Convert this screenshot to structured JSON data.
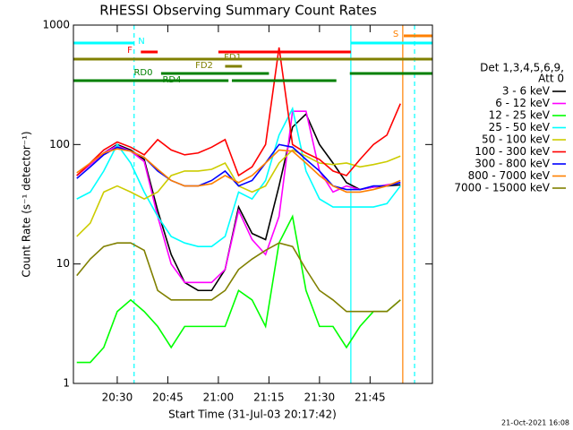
{
  "chart_data": {
    "type": "line",
    "title": "RHESSI Observing Summary Count Rates",
    "x_label": "Start Time (31-Jul-03 20:17:42)",
    "y_label": "Count Rate (s⁻¹ detector⁻¹)",
    "footer": "21-Oct-2021 16:08",
    "legend_title": [
      "Det 1,3,4,5,6,9,",
      "Att 0"
    ],
    "log_y": true,
    "xlim": [
      17,
      123.5
    ],
    "ylim": [
      1,
      1000
    ],
    "xticks": [
      {
        "value": 30,
        "label": "20:30"
      },
      {
        "value": 45,
        "label": "20:45"
      },
      {
        "value": 60,
        "label": "21:00"
      },
      {
        "value": 75,
        "label": "21:15"
      },
      {
        "value": 90,
        "label": "21:30"
      },
      {
        "value": 105,
        "label": "21:45"
      }
    ],
    "yticks": [
      1,
      10,
      100,
      1000
    ],
    "x": [
      18,
      22,
      26,
      30,
      34,
      38,
      42,
      46,
      50,
      54,
      58,
      62,
      66,
      70,
      74,
      78,
      82,
      86,
      90,
      94,
      98,
      102,
      106,
      110,
      114,
      118,
      122
    ],
    "series": [
      {
        "name": "3 - 6 keV",
        "color": "#000000",
        "values": [
          55,
          68,
          85,
          100,
          90,
          75,
          28,
          12,
          7,
          6,
          6,
          9,
          30,
          18,
          16,
          45,
          140,
          180,
          100,
          70,
          48,
          42,
          44,
          45,
          46,
          null,
          null
        ]
      },
      {
        "name": "6 - 12 keV",
        "color": "#ff00ff",
        "values": [
          55,
          68,
          85,
          98,
          88,
          72,
          25,
          10,
          7,
          7,
          7,
          9,
          28,
          16,
          12,
          25,
          190,
          190,
          60,
          40,
          45,
          42,
          44,
          46,
          48,
          null,
          null
        ]
      },
      {
        "name": "12 - 25 keV",
        "color": "#00ff00",
        "values": [
          1.5,
          1.5,
          2,
          4,
          5,
          4,
          3,
          2,
          3,
          3,
          3,
          3,
          6,
          5,
          3,
          15,
          25,
          6,
          3,
          3,
          2,
          3,
          4,
          4,
          5,
          null,
          null
        ]
      },
      {
        "name": "25 - 50 keV",
        "color": "#00ffff",
        "values": [
          35,
          40,
          60,
          100,
          70,
          40,
          25,
          17,
          15,
          14,
          14,
          17,
          40,
          35,
          50,
          120,
          200,
          60,
          35,
          30,
          30,
          30,
          30,
          32,
          45,
          null,
          null
        ]
      },
      {
        "name": "50 - 100 keV",
        "color": "#cccc00",
        "values": [
          17,
          22,
          40,
          45,
          40,
          35,
          40,
          55,
          60,
          60,
          62,
          70,
          45,
          40,
          45,
          70,
          90,
          80,
          70,
          68,
          70,
          65,
          68,
          72,
          80,
          null,
          null
        ]
      },
      {
        "name": "100 - 300 keV",
        "color": "#ff0000",
        "values": [
          55,
          70,
          90,
          105,
          95,
          82,
          110,
          90,
          82,
          85,
          95,
          110,
          55,
          65,
          100,
          650,
          100,
          85,
          75,
          60,
          55,
          75,
          100,
          120,
          220,
          null,
          null
        ]
      },
      {
        "name": "300 - 800 keV",
        "color": "#0000ff",
        "values": [
          52,
          65,
          82,
          95,
          88,
          78,
          60,
          50,
          45,
          45,
          50,
          60,
          45,
          50,
          70,
          100,
          95,
          75,
          60,
          45,
          42,
          42,
          45,
          45,
          48,
          null,
          null
        ]
      },
      {
        "name": "800 - 7000 keV",
        "color": "#ff8000",
        "values": [
          58,
          70,
          85,
          92,
          88,
          78,
          62,
          50,
          45,
          45,
          47,
          55,
          48,
          55,
          70,
          90,
          88,
          70,
          55,
          45,
          40,
          40,
          42,
          45,
          50,
          null,
          null
        ]
      },
      {
        "name": "7000 - 15000 keV",
        "color": "#808000",
        "values": [
          8,
          11,
          14,
          15,
          15,
          13,
          6,
          5,
          5,
          5,
          5,
          6,
          9,
          11,
          13,
          15,
          14,
          9,
          6,
          5,
          4,
          4,
          4,
          4,
          5,
          null,
          null
        ]
      }
    ],
    "flags": [
      {
        "label": "N",
        "color": "#00ffff",
        "segments": [
          [
            17,
            35
          ],
          [
            99.3,
            123.5
          ]
        ]
      },
      {
        "label": "F",
        "color": "#ff0000",
        "segments": [
          [
            37,
            42
          ],
          [
            60,
            99.3
          ]
        ]
      },
      {
        "label": "FD1",
        "color": "#808000",
        "segments": [
          [
            17,
            123.5
          ]
        ]
      },
      {
        "label": "FD2",
        "color": "#808000",
        "segments": [
          [
            62,
            67
          ]
        ]
      },
      {
        "label": "RD0",
        "color": "#008000",
        "segments": [
          [
            43,
            75
          ],
          [
            99,
            123.5
          ]
        ]
      },
      {
        "label": "RD4",
        "color": "#008000",
        "segments": [
          [
            17,
            63
          ],
          [
            64,
            95
          ]
        ]
      },
      {
        "label": "S",
        "color": "#ff8000",
        "segments": [
          [
            115,
            123.5
          ]
        ]
      }
    ],
    "vlines": [
      {
        "x": 35,
        "color": "#00ffff",
        "dashed": true
      },
      {
        "x": 99.3,
        "color": "#00ffff",
        "dashed": false
      },
      {
        "x": 114.7,
        "color": "#ff8000",
        "dashed": false
      },
      {
        "x": 118.2,
        "color": "#00ffff",
        "dashed": true
      }
    ]
  }
}
